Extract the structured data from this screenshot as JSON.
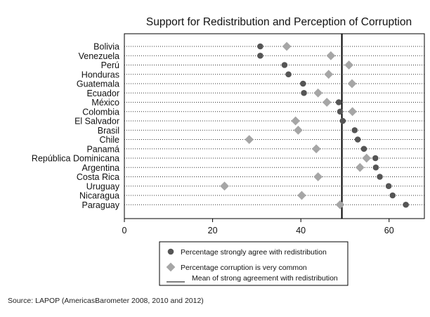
{
  "source": "Source: LAPOP (AmericasBarometer 2008, 2010 and 2012)",
  "chart_data": {
    "type": "scatter",
    "title": "Support for Redistribution and Perception of Corruption",
    "xlabel": "",
    "ylabel": "",
    "xlim": [
      0,
      68
    ],
    "x_ticks": [
      0,
      20,
      40,
      60
    ],
    "categories": [
      "Bolivia",
      "Venezuela",
      "Perú",
      "Honduras",
      "Guatemala",
      "Ecuador",
      "México",
      "Colombia",
      "El Salvador",
      "Brasil",
      "Chile",
      "Panamá",
      "República Dominicana",
      "Argentina",
      "Costa Rica",
      "Uruguay",
      "Nicaragua",
      "Paraguay"
    ],
    "series": [
      {
        "name": "Percentage strongly agree with redistribution",
        "marker": "circle",
        "color": "#555555",
        "values": [
          30.8,
          30.8,
          36.3,
          37.2,
          40.5,
          40.7,
          48.6,
          48.9,
          49.5,
          52.2,
          52.9,
          54.3,
          56.9,
          57.0,
          57.9,
          59.9,
          60.8,
          63.8
        ]
      },
      {
        "name": "Percentage corruption is very common",
        "marker": "diamond",
        "color": "#a6a6a6",
        "values": [
          36.8,
          46.8,
          50.9,
          46.3,
          51.6,
          43.9,
          45.9,
          51.7,
          38.8,
          39.4,
          28.3,
          43.5,
          54.9,
          53.4,
          43.9,
          22.7,
          40.2,
          48.9
        ]
      }
    ],
    "reference_line": {
      "name": "Mean of strong agreement with redistribution",
      "value": 49.3,
      "color": "#000000"
    },
    "grid": "dotted horizontal",
    "legend_position": "bottom-center"
  }
}
